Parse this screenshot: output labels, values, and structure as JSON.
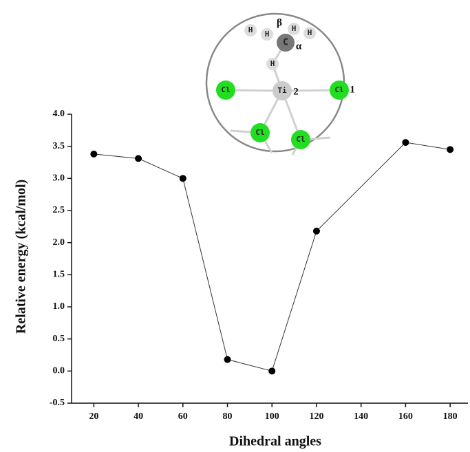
{
  "chart_data": {
    "type": "line",
    "x_label": "Dihedral angles",
    "y_label": "Relative energy (kcal/mol)",
    "x": [
      20,
      40,
      60,
      80,
      100,
      120,
      160,
      180
    ],
    "values": [
      3.38,
      3.31,
      3.0,
      0.18,
      0.0,
      2.18,
      3.56,
      3.45
    ],
    "color": "#333333",
    "marker_color": "#000000",
    "xlim": [
      10,
      188
    ],
    "ylim": [
      -0.5,
      4.0
    ],
    "xticks": [
      20,
      40,
      60,
      80,
      100,
      120,
      140,
      160,
      180
    ],
    "yticks": [
      {
        "value": -0.5,
        "label": "-0.5"
      },
      {
        "value": 0,
        "label": "0.0"
      },
      0.5,
      {
        "value": 1,
        "label": "1.0"
      },
      1.5,
      {
        "value": 2,
        "label": "2.0"
      },
      2.5,
      {
        "value": 3,
        "label": "3.0"
      },
      3.5,
      {
        "value": 4,
        "label": "4.0"
      }
    ],
    "grid": false
  },
  "inset": {
    "atoms": [
      "H",
      "H",
      "H",
      "H",
      "H",
      "C",
      "Ti",
      "Cl",
      "Cl",
      "Cl",
      "Cl"
    ],
    "annotations": [
      "β",
      "α",
      "2",
      "1"
    ]
  }
}
